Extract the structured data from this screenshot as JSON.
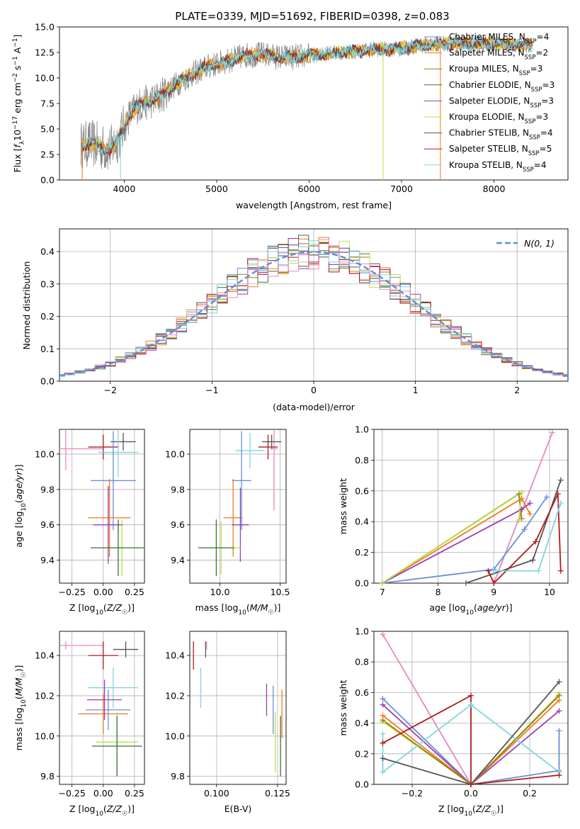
{
  "figure_title": "PLATE=0339, MJD=51692, FIBERID=0398, z=0.083",
  "colors": {
    "data": "#808080",
    "chabrier_miles": "#6a8fd8",
    "salpeter_miles": "#f07a1a",
    "kroupa_miles": "#a0781a",
    "chabrier_elodie": "#3c6e3c",
    "salpeter_elodie": "#9b3fb0",
    "kroupa_elodie": "#b8e04a",
    "chabrier_stelib": "#555555",
    "salpeter_stelib": "#b01a1a",
    "kroupa_stelib": "#7fd6e0",
    "pink": "#e58ac0",
    "normal": "#5b8ed6"
  },
  "chart_data": [
    {
      "id": "spectrum",
      "type": "line",
      "xlabel": "wavelength [Angstrom, rest frame]",
      "ylabel": "Flux [f_λ10^-17 erg cm^-2 s^-1 A^-1]",
      "xlim": [
        3300,
        8800
      ],
      "ylim": [
        0,
        15
      ],
      "xticks": [
        4000,
        5000,
        6000,
        7000,
        8000
      ],
      "yticks": [
        0.0,
        2.5,
        5.0,
        7.5,
        10.0,
        12.5,
        15.0
      ],
      "ytick_labels": [
        "0.0",
        "2.5",
        "5.0",
        "7.5",
        "10.0",
        "12.5",
        "15.0"
      ],
      "legend_position": "top-right",
      "legend": [
        {
          "key": "chabrier_miles",
          "label": "Chabrier MILES, N",
          "sub": "SSP",
          "tail": "=4"
        },
        {
          "key": "salpeter_miles",
          "label": "Salpeter MILES, N",
          "sub": "SSP",
          "tail": "=2"
        },
        {
          "key": "kroupa_miles",
          "label": "Kroupa MILES, N",
          "sub": "SSP",
          "tail": "=3"
        },
        {
          "key": "chabrier_elodie",
          "label": "Chabrier ELODIE, N",
          "sub": "SSP",
          "tail": "=3"
        },
        {
          "key": "salpeter_elodie",
          "label": "Salpeter ELODIE, N",
          "sub": "SSP",
          "tail": "=3"
        },
        {
          "key": "kroupa_elodie",
          "label": "Kroupa ELODIE, N",
          "sub": "SSP",
          "tail": "=3"
        },
        {
          "key": "chabrier_stelib",
          "label": "Chabrier STELIB, N",
          "sub": "SSP",
          "tail": "=4"
        },
        {
          "key": "salpeter_stelib",
          "label": "Salpeter STELIB, N",
          "sub": "SSP",
          "tail": "=5"
        },
        {
          "key": "kroupa_stelib",
          "label": "Kroupa STELIB, N",
          "sub": "SSP",
          "tail": "=4"
        }
      ],
      "continuum": {
        "x": [
          3550,
          3650,
          3750,
          3850,
          3950,
          4050,
          4150,
          4250,
          4350,
          4500,
          4700,
          4900,
          5100,
          5300,
          5500,
          5700,
          5900,
          6100,
          6300,
          6500,
          6700,
          6900,
          7100,
          7300,
          7500,
          7700,
          7900,
          8100,
          8300,
          8400
        ],
        "y": [
          3.4,
          3.6,
          3.2,
          3.0,
          4.2,
          6.2,
          7.3,
          7.6,
          7.9,
          9.0,
          10.2,
          11.1,
          11.6,
          12.2,
          12.3,
          12.0,
          12.1,
          12.3,
          12.5,
          12.6,
          12.8,
          12.8,
          13.0,
          13.3,
          13.4,
          13.3,
          13.4,
          13.3,
          13.2,
          13.2
        ]
      }
    },
    {
      "id": "residuals",
      "type": "histogram",
      "xlabel": "(data-model)/error",
      "ylabel": "Normed distribution",
      "xlim": [
        -2.5,
        2.5
      ],
      "ylim": [
        0,
        0.47
      ],
      "xticks": [
        -2,
        -1,
        0,
        1,
        2
      ],
      "xtick_labels": [
        "−2",
        "−1",
        "0",
        "1",
        "2"
      ],
      "yticks": [
        0.0,
        0.1,
        0.2,
        0.3,
        0.4
      ],
      "ytick_labels": [
        "0.0",
        "0.1",
        "0.2",
        "0.3",
        "0.4"
      ],
      "grid": true,
      "legend_position": "top-right",
      "legend": [
        {
          "key": "normal",
          "label": "N(0, 1)"
        }
      ]
    },
    {
      "id": "age_vs_Z",
      "type": "errorbar",
      "xlabel": "Z [log10(Z/Z☉)]",
      "ylabel": "age [log10(age/yr)]",
      "xlim": [
        -0.35,
        0.33
      ],
      "ylim": [
        9.27,
        10.14
      ],
      "xticks": [
        -0.25,
        0.0,
        0.25
      ],
      "xtick_labels": [
        "−0.25",
        "0.00",
        "0.25"
      ],
      "yticks": [
        9.4,
        9.6,
        9.8,
        10.0
      ],
      "ytick_labels": [
        "9.4",
        "9.6",
        "9.8",
        "10.0"
      ],
      "grid": true,
      "points": [
        {
          "c": "pink",
          "x": -0.3,
          "xerr": 0.3,
          "y": 10.03,
          "yerr": 0.12
        },
        {
          "c": "salpeter_stelib",
          "x": 0.0,
          "xerr": 0.12,
          "y": 10.04,
          "yerr": 0.07
        },
        {
          "c": "chabrier_stelib",
          "x": 0.16,
          "xerr": 0.1,
          "y": 10.07,
          "yerr": 0.05
        },
        {
          "c": "kroupa_stelib",
          "x": 0.12,
          "xerr": 0.16,
          "y": 10.01,
          "yerr": 0.14
        },
        {
          "c": "chabrier_miles",
          "x": 0.08,
          "xerr": 0.18,
          "y": 9.85,
          "yerr": 0.28
        },
        {
          "c": "salpeter_miles",
          "x": 0.05,
          "xerr": 0.17,
          "y": 9.64,
          "yerr": 0.22
        },
        {
          "c": "salpeter_elodie",
          "x": 0.04,
          "xerr": 0.12,
          "y": 9.6,
          "yerr": 0.22
        },
        {
          "c": "kroupa_elodie",
          "x": 0.15,
          "xerr": 0.14,
          "y": 9.47,
          "yerr": 0.16
        },
        {
          "c": "chabrier_elodie",
          "x": 0.12,
          "xerr": 0.22,
          "y": 9.47,
          "yerr": 0.16
        }
      ]
    },
    {
      "id": "age_vs_mass",
      "type": "errorbar",
      "xlabel": "mass [log10(M/M☉)]",
      "ylabel": "",
      "xlim": [
        9.75,
        10.55
      ],
      "ylim": [
        9.27,
        10.14
      ],
      "xticks": [
        10.0,
        10.5
      ],
      "xtick_labels": [
        "10.0",
        "10.5"
      ],
      "yticks": [
        9.4,
        9.6,
        9.8,
        10.0
      ],
      "ytick_labels": [
        "9.4",
        "9.6",
        "9.8",
        "10.0"
      ],
      "grid": true,
      "points": [
        {
          "c": "pink",
          "x": 10.45,
          "xerr": 0.03,
          "y": 10.03,
          "yerr": 0.35
        },
        {
          "c": "salpeter_stelib",
          "x": 10.4,
          "xerr": 0.08,
          "y": 10.04,
          "yerr": 0.07
        },
        {
          "c": "chabrier_stelib",
          "x": 10.43,
          "xerr": 0.08,
          "y": 10.07,
          "yerr": 0.04
        },
        {
          "c": "kroupa_stelib",
          "x": 10.25,
          "xerr": 0.12,
          "y": 10.02,
          "yerr": 0.1
        },
        {
          "c": "chabrier_miles",
          "x": 10.18,
          "xerr": 0.08,
          "y": 9.85,
          "yerr": 0.28
        },
        {
          "c": "salpeter_miles",
          "x": 10.11,
          "xerr": 0.08,
          "y": 9.64,
          "yerr": 0.22
        },
        {
          "c": "salpeter_elodie",
          "x": 10.17,
          "xerr": 0.07,
          "y": 9.6,
          "yerr": 0.21
        },
        {
          "c": "kroupa_elodie",
          "x": 10.01,
          "xerr": 0.17,
          "y": 9.47,
          "yerr": 0.15
        },
        {
          "c": "chabrier_elodie",
          "x": 9.97,
          "xerr": 0.15,
          "y": 9.47,
          "yerr": 0.16
        }
      ]
    },
    {
      "id": "weight_vs_age",
      "type": "line",
      "xlabel": "age [log10(age/yr)]",
      "ylabel": "mass weight",
      "xlim": [
        6.85,
        10.33
      ],
      "ylim": [
        0,
        1
      ],
      "xticks": [
        7,
        8,
        9,
        10
      ],
      "xtick_labels": [
        "7",
        "8",
        "9",
        "10"
      ],
      "yticks": [
        0.0,
        0.2,
        0.4,
        0.6,
        0.8,
        1.0
      ],
      "ytick_labels": [
        "0.0",
        "0.2",
        "0.4",
        "0.6",
        "0.8",
        "1.0"
      ],
      "grid": true,
      "series": [
        {
          "c": "pink",
          "x": [
            9.0,
            10.05
          ],
          "y": [
            0.0,
            0.98
          ]
        },
        {
          "c": "chabrier_miles",
          "x": [
            7.0,
            9.0,
            9.55,
            9.95
          ],
          "y": [
            0.0,
            0.09,
            0.35,
            0.56
          ]
        },
        {
          "c": "salpeter_miles",
          "x": [
            7.0,
            9.5,
            9.65
          ],
          "y": [
            0.0,
            0.55,
            0.45
          ]
        },
        {
          "c": "kroupa_miles",
          "x": [
            7.0,
            9.45,
            9.5
          ],
          "y": [
            0.0,
            0.58,
            0.42
          ]
        },
        {
          "c": "salpeter_elodie",
          "x": [
            7.0,
            9.5,
            9.65
          ],
          "y": [
            0.0,
            0.48,
            0.52
          ]
        },
        {
          "c": "kroupa_elodie",
          "x": [
            7.0,
            9.5,
            9.45
          ],
          "y": [
            0.0,
            0.59,
            0.41
          ]
        },
        {
          "c": "chabrier_stelib",
          "x": [
            8.5,
            9.7,
            10.2
          ],
          "y": [
            0.0,
            0.15,
            0.67
          ]
        },
        {
          "c": "salpeter_stelib",
          "x": [
            8.9,
            9.0,
            9.75,
            10.15,
            10.2
          ],
          "y": [
            0.08,
            0.0,
            0.27,
            0.58,
            0.08
          ]
        },
        {
          "c": "kroupa_stelib",
          "x": [
            9.0,
            9.8,
            10.2
          ],
          "y": [
            0.08,
            0.08,
            0.52
          ]
        }
      ]
    },
    {
      "id": "mass_vs_Z",
      "type": "errorbar",
      "xlabel": "Z [log10(Z/Z☉)]",
      "ylabel": "mass [log10(M/M☉)]",
      "xlim": [
        -0.35,
        0.33
      ],
      "ylim": [
        9.76,
        10.52
      ],
      "xticks": [
        -0.25,
        0.0,
        0.25
      ],
      "xtick_labels": [
        "−0.25",
        "0.00",
        "0.25"
      ],
      "yticks": [
        9.8,
        10.0,
        10.2,
        10.4
      ],
      "ytick_labels": [
        "9.8",
        "10.0",
        "10.2",
        "10.4"
      ],
      "grid": true,
      "points": [
        {
          "c": "pink",
          "x": -0.3,
          "xerr": 0.3,
          "y": 10.45,
          "yerr": 0.02
        },
        {
          "c": "salpeter_stelib",
          "x": 0.0,
          "xerr": 0.12,
          "y": 10.4,
          "yerr": 0.07
        },
        {
          "c": "chabrier_stelib",
          "x": 0.18,
          "xerr": 0.1,
          "y": 10.43,
          "yerr": 0.04
        },
        {
          "c": "kroupa_stelib",
          "x": 0.08,
          "xerr": 0.2,
          "y": 10.24,
          "yerr": 0.1
        },
        {
          "c": "chabrier_miles",
          "x": 0.04,
          "xerr": 0.18,
          "y": 10.13,
          "yerr": 0.1
        },
        {
          "c": "salpeter_miles",
          "x": 0.0,
          "xerr": 0.2,
          "y": 10.11,
          "yerr": 0.1
        },
        {
          "c": "salpeter_elodie",
          "x": 0.01,
          "xerr": 0.14,
          "y": 10.18,
          "yerr": 0.1
        },
        {
          "c": "kroupa_elodie",
          "x": 0.11,
          "xerr": 0.17,
          "y": 9.97,
          "yerr": 0.15
        },
        {
          "c": "chabrier_elodie",
          "x": 0.11,
          "xerr": 0.2,
          "y": 9.95,
          "yerr": 0.15
        }
      ]
    },
    {
      "id": "mass_vs_ebv",
      "type": "errorbar",
      "xlabel": "E(B-V)",
      "ylabel": "",
      "xlim": [
        0.089,
        0.1285
      ],
      "ylim": [
        9.76,
        10.52
      ],
      "xticks": [
        0.1,
        0.125
      ],
      "xtick_labels": [
        "0.100",
        "0.125"
      ],
      "yticks": [
        9.8,
        10.0,
        10.2,
        10.4
      ],
      "ytick_labels": [
        "9.8",
        "10.0",
        "10.2",
        "10.4"
      ],
      "grid": true,
      "points": [
        {
          "c": "salpeter_stelib",
          "x": 0.0905,
          "y": 10.4,
          "yerr": 0.07
        },
        {
          "c": "kroupa_stelib",
          "x": 0.0935,
          "y": 10.24,
          "yerr": 0.1
        },
        {
          "c": "chabrier_stelib",
          "x": 0.0955,
          "y": 10.43,
          "yerr": 0.04
        },
        {
          "c": "pink",
          "x": 0.0959,
          "y": 10.45,
          "yerr": 0.02
        },
        {
          "c": "salpeter_elodie",
          "x": 0.1205,
          "y": 10.18,
          "yerr": 0.08
        },
        {
          "c": "chabrier_miles",
          "x": 0.1232,
          "y": 10.13,
          "yerr": 0.12
        },
        {
          "c": "kroupa_elodie",
          "x": 0.1241,
          "y": 9.97,
          "yerr": 0.15
        },
        {
          "c": "salpeter_miles",
          "x": 0.1268,
          "y": 10.11,
          "yerr": 0.12
        },
        {
          "c": "chabrier_elodie",
          "x": 0.1262,
          "y": 9.95,
          "yerr": 0.15
        }
      ]
    },
    {
      "id": "weight_vs_Z",
      "type": "line",
      "xlabel": "Z [log10(Z/Z☉)]",
      "ylabel": "mass weight",
      "xlim": [
        -0.33,
        0.33
      ],
      "ylim": [
        0,
        1
      ],
      "xticks": [
        -0.2,
        0.0,
        0.2
      ],
      "xtick_labels": [
        "−0.2",
        "0.0",
        "0.2"
      ],
      "yticks": [
        0.0,
        0.2,
        0.4,
        0.6,
        0.8,
        1.0
      ],
      "ytick_labels": [
        "0.0",
        "0.2",
        "0.4",
        "0.6",
        "0.8",
        "1.0"
      ],
      "grid": true,
      "series": [
        {
          "c": "pink",
          "x": [
            -0.3,
            0.0
          ],
          "y": [
            0.98,
            0.0
          ]
        },
        {
          "c": "chabrier_miles",
          "x": [
            -0.3,
            0.0,
            0.3,
            0.3
          ],
          "y": [
            0.56,
            0.0,
            0.09,
            0.35
          ]
        },
        {
          "c": "salpeter_elodie",
          "x": [
            -0.3,
            0.0,
            0.3
          ],
          "y": [
            0.52,
            0.0,
            0.48
          ]
        },
        {
          "c": "salpeter_miles",
          "x": [
            -0.3,
            0.0,
            0.3
          ],
          "y": [
            0.45,
            0.0,
            0.55
          ]
        },
        {
          "c": "kroupa_elodie",
          "x": [
            -0.3,
            0.0,
            0.3
          ],
          "y": [
            0.41,
            0.0,
            0.59
          ]
        },
        {
          "c": "kroupa_miles",
          "x": [
            -0.3,
            0.0,
            0.3
          ],
          "y": [
            0.42,
            0.0,
            0.58
          ]
        },
        {
          "c": "kroupa_stelib",
          "x": [
            -0.3,
            -0.3,
            0.0,
            0.3
          ],
          "y": [
            0.33,
            0.08,
            0.52,
            0.08
          ]
        },
        {
          "c": "chabrier_stelib",
          "x": [
            -0.3,
            0.0,
            0.3
          ],
          "y": [
            0.17,
            0.0,
            0.67
          ]
        },
        {
          "c": "salpeter_stelib",
          "x": [
            -0.3,
            0.0,
            0.0,
            0.3
          ],
          "y": [
            0.27,
            0.58,
            0.0,
            0.06
          ]
        }
      ]
    }
  ]
}
